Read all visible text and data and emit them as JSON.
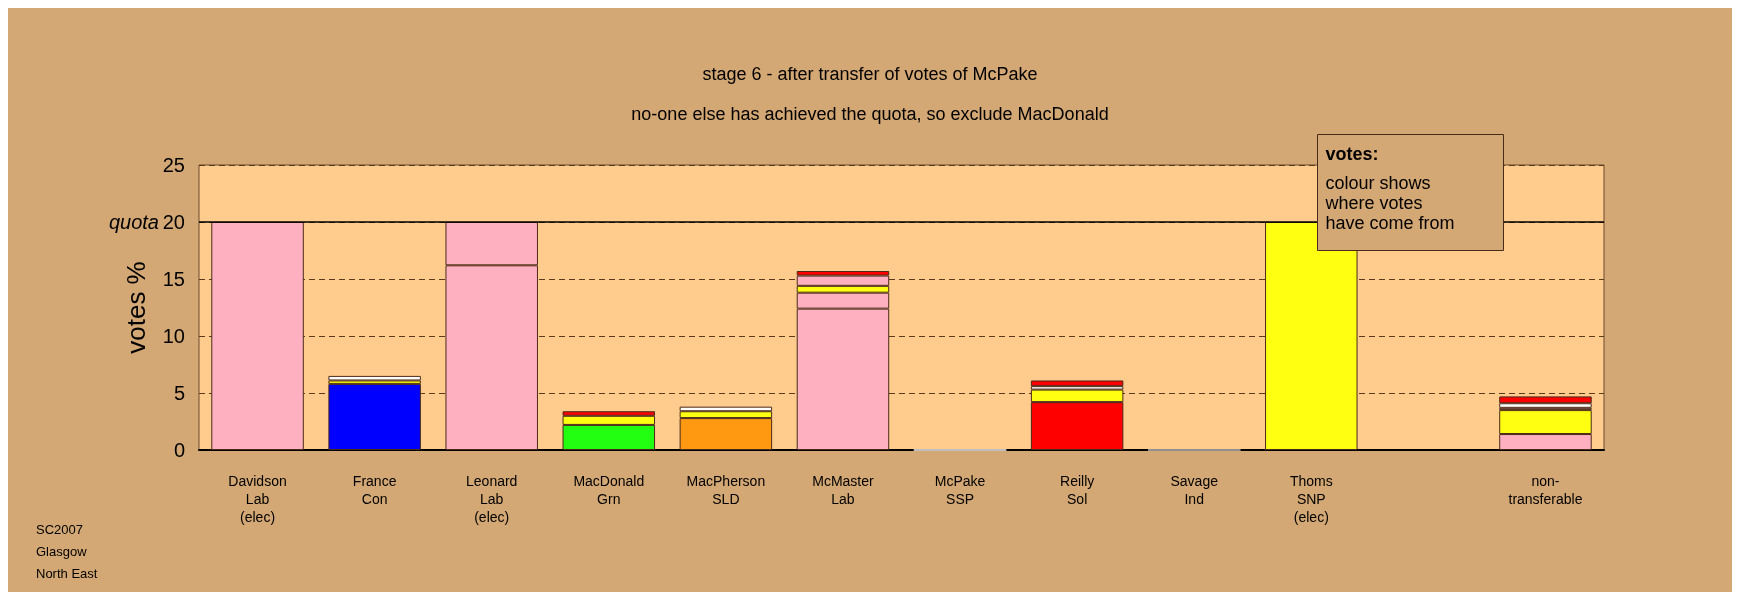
{
  "chart_data": {
    "type": "bar",
    "title": "stage 6 - after transfer of votes of McPake",
    "subtitle": "no-one else has achieved the quota, so exclude MacDonald",
    "ylabel": "votes %",
    "categories": [
      "Davidson\nLab\n(elec)",
      "France\nCon",
      "Leonard\nLab\n(elec)",
      "MacDonald\nGrn",
      "MacPherson\nSLD",
      "McMaster\nLab",
      "McPake\nSSP",
      "Reilly\nSol",
      "Savage\nInd",
      "Thoms\nSNP\n(elec)",
      null,
      "non-\ntransferable"
    ],
    "stacked": true,
    "series": [
      {
        "values": [
          20,
          5.8,
          16.2,
          2.2,
          2.8,
          12.4,
          0,
          4.2,
          0,
          20,
          null,
          1.4
        ],
        "colors": [
          "#ffb0c0",
          "#0000ff",
          "#ffb0c0",
          "#22ff11",
          "#ff9911",
          "#ffb0c0",
          "#ffffff",
          "#ff0000",
          "#c0c0c0",
          "#ffff11",
          null,
          "#ffb0c0"
        ]
      },
      {
        "values": [
          null,
          0.3,
          3.8,
          0.8,
          0.6,
          1.4,
          null,
          1.1,
          null,
          null,
          null,
          2.1
        ],
        "colors": [
          null,
          "#ffff11",
          "#ffb0c0",
          "#ffff11",
          "#ffff11",
          "#ffb0c0",
          null,
          "#ffff11",
          null,
          null,
          null,
          "#ffff11"
        ]
      },
      {
        "values": [
          null,
          0.4,
          null,
          0.4,
          0.4,
          0.6,
          null,
          0.3,
          null,
          null,
          null,
          0.2
        ],
        "colors": [
          null,
          "#ffffff",
          null,
          "#ff0000",
          "#ffffff",
          "#ffff11",
          null,
          "#ffffff",
          null,
          null,
          null,
          "#ffb0c0"
        ]
      },
      {
        "values": [
          null,
          null,
          null,
          null,
          null,
          0.9,
          null,
          0.5,
          null,
          null,
          null,
          0.4
        ],
        "colors": [
          null,
          null,
          null,
          null,
          null,
          "#ffb0c0",
          null,
          "#ff0000",
          null,
          null,
          null,
          "#ffffff"
        ]
      },
      {
        "values": [
          null,
          null,
          null,
          null,
          null,
          0.4,
          null,
          null,
          null,
          null,
          null,
          0.6
        ],
        "colors": [
          null,
          null,
          null,
          null,
          null,
          "#ff0000",
          null,
          null,
          null,
          null,
          null,
          "#ff0000"
        ]
      }
    ],
    "ylim": [
      0,
      25
    ],
    "yticks": [
      0,
      5,
      10,
      15,
      20,
      25
    ],
    "grid": "y",
    "ref_lines": [
      {
        "axis": "y",
        "value": 20,
        "label": "quota",
        "color": "#000000",
        "line_style": "solid"
      }
    ],
    "annotations": [
      "votes:\ncolour shows\nwhere votes\nhave come from",
      "SC2007\nGlasgow\nNorth East"
    ]
  }
}
